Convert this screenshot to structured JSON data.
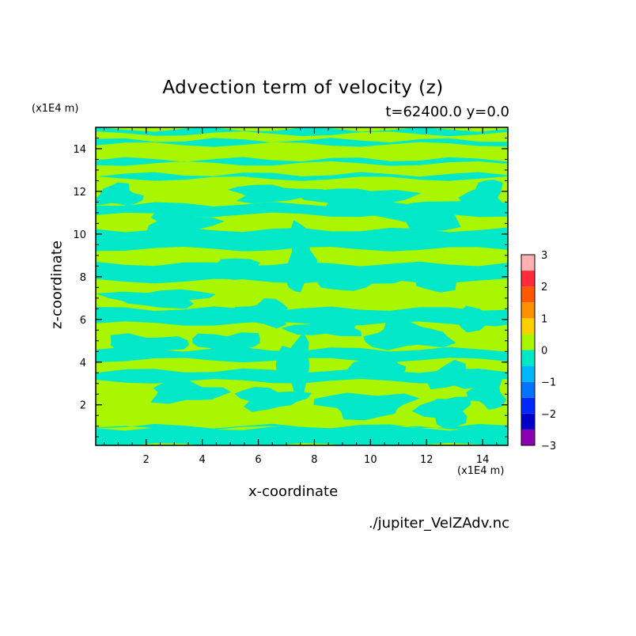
{
  "chart_data": {
    "type": "heatmap",
    "title": "Advection term of velocity (z)",
    "subtitle": "t=62400.0 y=0.0",
    "xlabel": "x-coordinate",
    "ylabel": "z-coordinate",
    "x_unit": "(x1E4 m)",
    "y_unit": "(x1E4 m)",
    "xlim": [
      0.2,
      14.9
    ],
    "ylim": [
      0.1,
      15.0
    ],
    "x_ticks": [
      2,
      4,
      6,
      8,
      10,
      12,
      14
    ],
    "y_ticks": [
      2,
      4,
      6,
      8,
      10,
      12,
      14
    ],
    "colorbar": {
      "levels": [
        -3,
        -2.5,
        -2,
        -1.5,
        -1,
        -0.5,
        0,
        0.5,
        1,
        1.5,
        2,
        2.5,
        3
      ],
      "tick_labels": [
        "3",
        "2",
        "1",
        "0",
        "−1",
        "−2",
        "−3"
      ],
      "colors": [
        "#8a00b0",
        "#0000c8",
        "#0028ff",
        "#0073ff",
        "#00b7ff",
        "#00e8c8",
        "#aaf500",
        "#ffd000",
        "#ff9000",
        "#ff5a00",
        "#ff2a3c",
        "#ffb0b0"
      ]
    },
    "background_color": "#aaf500",
    "contour_color": "#00e8c8",
    "z_bands": [
      {
        "y0": 0.1,
        "y1": 0.9,
        "v": -0.25
      },
      {
        "y0": 0.9,
        "y1": 1.0,
        "v": -0.25
      },
      {
        "y0": 3.1,
        "y1": 3.6,
        "v": -0.25
      },
      {
        "y0": 4.1,
        "y1": 4.6,
        "v": -0.25
      },
      {
        "y0": 5.8,
        "y1": 6.5,
        "v": -0.25
      },
      {
        "y0": 7.8,
        "y1": 8.6,
        "v": -0.25
      },
      {
        "y0": 9.3,
        "y1": 10.2,
        "v": -0.25
      },
      {
        "y0": 10.9,
        "y1": 11.4,
        "v": -0.25
      },
      {
        "y0": 12.6,
        "y1": 12.8,
        "v": -0.25
      },
      {
        "y0": 13.3,
        "y1": 13.5,
        "v": -0.25
      },
      {
        "y0": 14.2,
        "y1": 14.4,
        "v": -0.25
      },
      {
        "y0": 14.7,
        "y1": 14.9,
        "v": -0.25
      }
    ],
    "blobs": [
      {
        "x": 1.0,
        "y": 11.8,
        "rx": 0.8,
        "ry": 0.5
      },
      {
        "x": 3.2,
        "y": 10.6,
        "rx": 1.2,
        "ry": 0.5
      },
      {
        "x": 6.5,
        "y": 11.9,
        "rx": 1.5,
        "ry": 0.4
      },
      {
        "x": 9.5,
        "y": 11.6,
        "rx": 1.8,
        "ry": 0.6
      },
      {
        "x": 12.0,
        "y": 10.9,
        "rx": 1.5,
        "ry": 0.7
      },
      {
        "x": 14.1,
        "y": 11.7,
        "rx": 0.7,
        "ry": 0.8
      },
      {
        "x": 5.2,
        "y": 8.3,
        "rx": 1.2,
        "ry": 0.5
      },
      {
        "x": 7.5,
        "y": 8.8,
        "rx": 0.5,
        "ry": 1.6
      },
      {
        "x": 9.4,
        "y": 7.9,
        "rx": 1.4,
        "ry": 0.5
      },
      {
        "x": 12.5,
        "y": 8.0,
        "rx": 1.2,
        "ry": 0.6
      },
      {
        "x": 2.5,
        "y": 7.0,
        "rx": 1.8,
        "ry": 0.4
      },
      {
        "x": 6.2,
        "y": 6.3,
        "rx": 0.9,
        "ry": 0.6
      },
      {
        "x": 8.4,
        "y": 5.6,
        "rx": 1.3,
        "ry": 0.4
      },
      {
        "x": 11.3,
        "y": 5.2,
        "rx": 1.5,
        "ry": 0.6
      },
      {
        "x": 13.9,
        "y": 6.0,
        "rx": 0.9,
        "ry": 0.5
      },
      {
        "x": 2.0,
        "y": 4.8,
        "rx": 1.4,
        "ry": 0.5
      },
      {
        "x": 4.9,
        "y": 4.9,
        "rx": 1.2,
        "ry": 0.5
      },
      {
        "x": 7.3,
        "y": 3.9,
        "rx": 0.6,
        "ry": 1.2
      },
      {
        "x": 10.3,
        "y": 3.8,
        "rx": 1.0,
        "ry": 0.5
      },
      {
        "x": 13.0,
        "y": 3.3,
        "rx": 0.9,
        "ry": 0.6
      },
      {
        "x": 3.4,
        "y": 2.6,
        "rx": 1.3,
        "ry": 0.5
      },
      {
        "x": 6.4,
        "y": 2.3,
        "rx": 1.2,
        "ry": 0.5
      },
      {
        "x": 9.8,
        "y": 2.0,
        "rx": 1.6,
        "ry": 0.6
      },
      {
        "x": 12.7,
        "y": 1.7,
        "rx": 0.9,
        "ry": 0.7
      },
      {
        "x": 14.2,
        "y": 2.6,
        "rx": 0.6,
        "ry": 0.8
      }
    ]
  },
  "footer": "./jupiter_VelZAdv.nc"
}
